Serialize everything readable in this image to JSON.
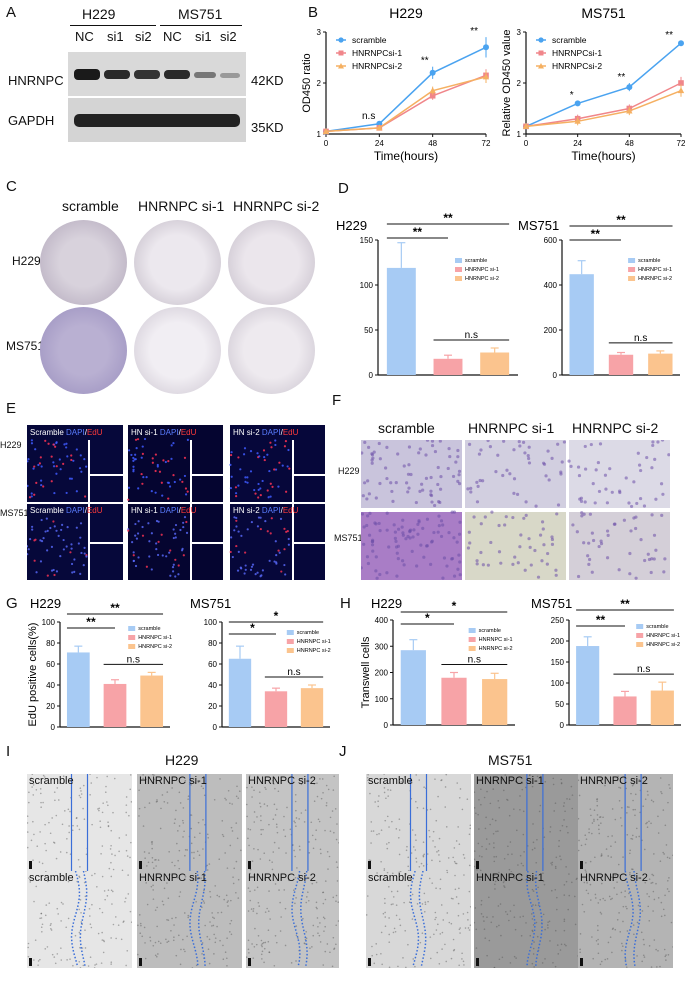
{
  "panels": {
    "A": "A",
    "B": "B",
    "C": "C",
    "D": "D",
    "E": "E",
    "F": "F",
    "G": "G",
    "H": "H",
    "I": "I",
    "J": "J"
  },
  "panelA": {
    "group1": "H229",
    "group2": "MS751",
    "lanes": [
      "NC",
      "si1",
      "si2",
      "NC",
      "si1",
      "si2"
    ],
    "proteins": [
      "HNRNPC",
      "GAPDH"
    ],
    "sizes": [
      "42KD",
      "35KD"
    ]
  },
  "panelC": {
    "columns": [
      "scramble",
      "HNRNPC si-1",
      "HNRNPC si-2"
    ],
    "rows": [
      "H229",
      "MS751"
    ]
  },
  "panelE": {
    "rows": [
      "H229",
      "MS751"
    ],
    "captions": [
      {
        "name": "Scramble",
        "dapi": "DAPI",
        "sep": "/",
        "edu": "EdU"
      },
      {
        "name": "HN si-1",
        "dapi": "DAPI",
        "sep": "/",
        "edu": "EdU"
      },
      {
        "name": "HN si-2",
        "dapi": "DAPI",
        "sep": "/",
        "edu": "EdU"
      }
    ]
  },
  "panelF": {
    "columns": [
      "scramble",
      "HNRNPC si-1",
      "HNRNPC si-2"
    ],
    "rows": [
      "H229",
      "MS751"
    ]
  },
  "panelI": {
    "title": "H229",
    "labels": [
      "scramble",
      "HNRNPC si-1",
      "HNRNPC si-2",
      "scramble",
      "HNRNPC si-1",
      "HNRNPC si-2"
    ]
  },
  "panelJ": {
    "title": "MS751",
    "labels": [
      "scramble",
      "HNRNPC si-1",
      "HNRNPC si-2",
      "scramble",
      "HNRNPC si-1",
      "HNRNPC si-2"
    ]
  },
  "colors": {
    "scramble": "#4aa3f0",
    "si1": "#f0868a",
    "si2": "#f5b062",
    "bar_scramble": "#a7cbf4",
    "bar_si1": "#f7a3a7",
    "bar_si2": "#fbc48e"
  },
  "chart_data": [
    {
      "id": "B-H229",
      "type": "line",
      "title": "H229",
      "xlabel": "Time(hours)",
      "ylabel": "OD450 ratio",
      "x": [
        0,
        24,
        48,
        72
      ],
      "xticks": [
        "0",
        "24",
        "48",
        "72"
      ],
      "ylim": [
        1,
        3
      ],
      "yticks": [
        "1",
        "2",
        "3"
      ],
      "series": [
        {
          "name": "scramble",
          "values": [
            1.05,
            1.2,
            2.2,
            2.7
          ],
          "err": [
            0.02,
            0.04,
            0.12,
            0.2
          ]
        },
        {
          "name": "HNRNPCsi-1",
          "values": [
            1.05,
            1.12,
            1.75,
            2.15
          ],
          "err": [
            0.02,
            0.04,
            0.08,
            0.12
          ]
        },
        {
          "name": "HNRNPCsi-2",
          "values": [
            1.05,
            1.12,
            1.85,
            2.12
          ],
          "err": [
            0.02,
            0.04,
            0.08,
            0.12
          ]
        }
      ],
      "annotations": [
        {
          "x": 24,
          "text": "n.s"
        },
        {
          "x": 48,
          "text": "**"
        },
        {
          "x": 72,
          "text": "**"
        }
      ]
    },
    {
      "id": "B-MS751",
      "type": "line",
      "title": "MS751",
      "xlabel": "Time(hours)",
      "ylabel": "Relative OD450 value",
      "x": [
        0,
        24,
        48,
        72
      ],
      "xticks": [
        "0",
        "24",
        "48",
        "72"
      ],
      "ylim": [
        1,
        3
      ],
      "yticks": [
        "1",
        "2",
        "3"
      ],
      "series": [
        {
          "name": "scramble",
          "values": [
            1.15,
            1.6,
            1.92,
            2.78
          ],
          "err": [
            0.03,
            0.05,
            0.08,
            0.04
          ]
        },
        {
          "name": "HNRNPCsi-1",
          "values": [
            1.15,
            1.3,
            1.5,
            2.0
          ],
          "err": [
            0.03,
            0.08,
            0.08,
            0.12
          ]
        },
        {
          "name": "HNRNPCsi-2",
          "values": [
            1.15,
            1.25,
            1.45,
            1.85
          ],
          "err": [
            0.03,
            0.08,
            0.08,
            0.12
          ]
        }
      ],
      "annotations": [
        {
          "x": 24,
          "text": "*"
        },
        {
          "x": 48,
          "text": "**"
        },
        {
          "x": 72,
          "text": "**"
        }
      ]
    },
    {
      "id": "D-H229",
      "type": "bar",
      "title": "H229",
      "ylabel": "",
      "categories": [
        "scramble",
        "HNRNPC si-1",
        "HNRNPC si-2"
      ],
      "values": [
        119,
        18,
        25
      ],
      "err": [
        28,
        4,
        5
      ],
      "ylim": [
        0,
        150
      ],
      "yticks": [
        "0",
        "50",
        "100",
        "150"
      ],
      "sig": [
        {
          "from": 0,
          "to": 1,
          "text": "**"
        },
        {
          "from": 0,
          "to": 2,
          "text": "**"
        },
        {
          "from": 1,
          "to": 2,
          "text": "n.s"
        }
      ]
    },
    {
      "id": "D-MS751",
      "type": "bar",
      "title": "MS751",
      "ylabel": "",
      "categories": [
        "scramble",
        "HNRNPC si-1",
        "HNRNPC si-2"
      ],
      "values": [
        448,
        90,
        95
      ],
      "err": [
        60,
        10,
        12
      ],
      "ylim": [
        0,
        600
      ],
      "yticks": [
        "0",
        "200",
        "400",
        "600"
      ],
      "sig": [
        {
          "from": 0,
          "to": 1,
          "text": "**"
        },
        {
          "from": 0,
          "to": 2,
          "text": "**"
        },
        {
          "from": 1,
          "to": 2,
          "text": "n.s"
        }
      ]
    },
    {
      "id": "G-H229",
      "type": "bar",
      "title": "H229",
      "ylabel": "EdU positive cells(%)",
      "categories": [
        "scramble",
        "HNRNPC si-1",
        "HNRNPC si-2"
      ],
      "values": [
        71,
        41,
        49
      ],
      "err": [
        6,
        4,
        3
      ],
      "ylim": [
        0,
        100
      ],
      "yticks": [
        "0",
        "20",
        "40",
        "60",
        "80",
        "100"
      ],
      "sig": [
        {
          "from": 0,
          "to": 1,
          "text": "**"
        },
        {
          "from": 0,
          "to": 2,
          "text": "**"
        },
        {
          "from": 1,
          "to": 2,
          "text": "n.s"
        }
      ]
    },
    {
      "id": "G-MS751",
      "type": "bar",
      "title": "MS751",
      "ylabel": "",
      "categories": [
        "scramble",
        "HNRNPC si-1",
        "HNRNPC si-2"
      ],
      "values": [
        65,
        34,
        37
      ],
      "err": [
        12,
        3,
        3
      ],
      "ylim": [
        0,
        100
      ],
      "yticks": [
        "0",
        "20",
        "40",
        "60",
        "80",
        "100"
      ],
      "sig": [
        {
          "from": 0,
          "to": 1,
          "text": "*"
        },
        {
          "from": 0,
          "to": 2,
          "text": "*"
        },
        {
          "from": 1,
          "to": 2,
          "text": "n.s"
        }
      ]
    },
    {
      "id": "H-H229",
      "type": "bar",
      "title": "H229",
      "ylabel": "Transwell cells",
      "categories": [
        "scramble",
        "HNRNPC si-1",
        "HNRNPC si-2"
      ],
      "values": [
        285,
        180,
        175
      ],
      "err": [
        40,
        20,
        22
      ],
      "ylim": [
        0,
        400
      ],
      "yticks": [
        "0",
        "100",
        "200",
        "300",
        "400"
      ],
      "sig": [
        {
          "from": 0,
          "to": 1,
          "text": "*"
        },
        {
          "from": 0,
          "to": 2,
          "text": "*"
        },
        {
          "from": 1,
          "to": 2,
          "text": "n.s"
        }
      ]
    },
    {
      "id": "H-MS751",
      "type": "bar",
      "title": "MS751",
      "ylabel": "",
      "categories": [
        "scramble",
        "HNRNPC si-1",
        "HNRNPC si-2"
      ],
      "values": [
        188,
        68,
        82
      ],
      "err": [
        22,
        12,
        20
      ],
      "ylim": [
        0,
        250
      ],
      "yticks": [
        "0",
        "50",
        "100",
        "150",
        "200",
        "250"
      ],
      "sig": [
        {
          "from": 0,
          "to": 1,
          "text": "**"
        },
        {
          "from": 0,
          "to": 2,
          "text": "**"
        },
        {
          "from": 1,
          "to": 2,
          "text": "n.s"
        }
      ]
    }
  ]
}
